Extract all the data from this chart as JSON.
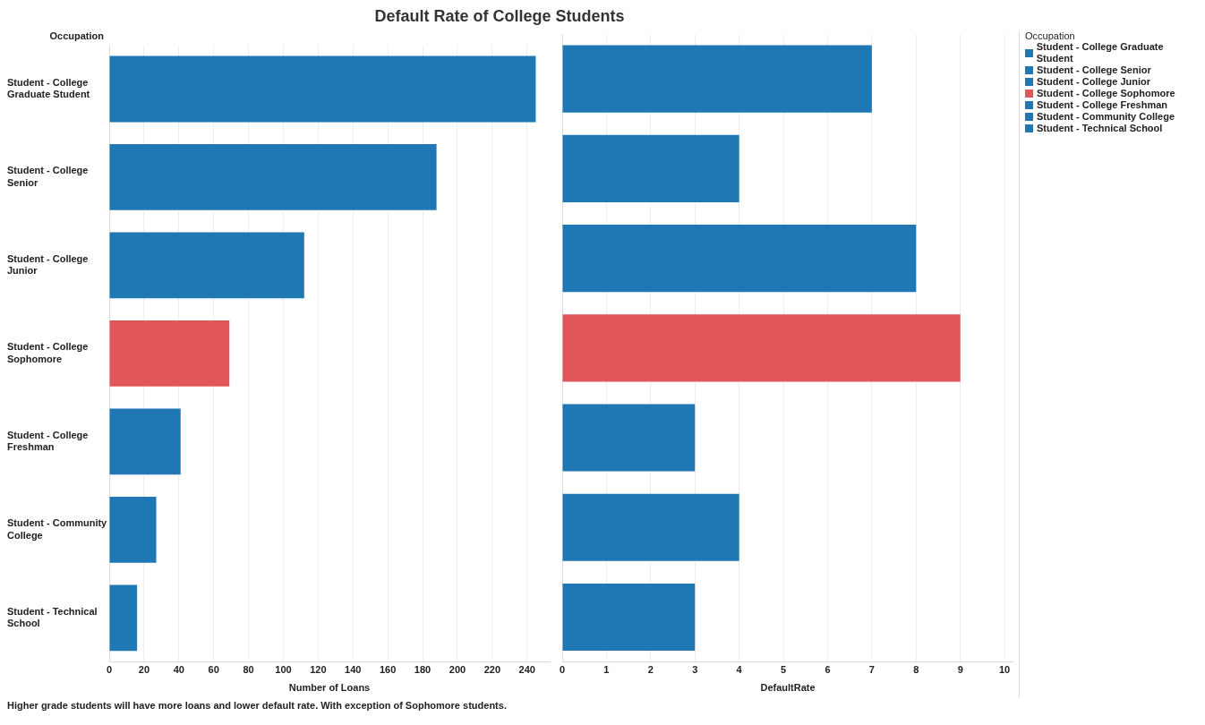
{
  "chart_data": [
    {
      "type": "bar",
      "orientation": "horizontal",
      "title": "Default Rate of College Students",
      "ylabel": "Occupation",
      "xlabel": "Number of Loans",
      "categories": [
        "Student - College Graduate Student",
        "Student - College Senior",
        "Student - College Junior",
        "Student - College Sophomore",
        "Student - College Freshman",
        "Student - Community College",
        "Student - Technical School"
      ],
      "values": [
        245,
        188,
        112,
        69,
        41,
        27,
        16
      ],
      "colors": [
        "#1f77b4",
        "#1f77b4",
        "#1f77b4",
        "#e15759",
        "#1f77b4",
        "#1f77b4",
        "#1f77b4"
      ],
      "xlim": [
        0,
        253
      ],
      "xticks": [
        0,
        20,
        40,
        60,
        80,
        100,
        120,
        140,
        160,
        180,
        200,
        220,
        240
      ],
      "grid": "x",
      "legend": false,
      "annotations": [
        "Higher grade students will have more loans and lower default rate. With exception of Sophomore students."
      ]
    },
    {
      "type": "bar",
      "orientation": "horizontal",
      "xlabel": "DefaultRate",
      "legend_title": "Occupation",
      "categories": [
        "Student - College Graduate Student",
        "Student - College Senior",
        "Student - College Junior",
        "Student - College Sophomore",
        "Student - College Freshman",
        "Student - Community College",
        "Student - Technical School"
      ],
      "values": [
        7,
        4,
        8,
        9,
        3,
        4,
        3
      ],
      "colors": [
        "#1f77b4",
        "#1f77b4",
        "#1f77b4",
        "#e15759",
        "#1f77b4",
        "#1f77b4",
        "#1f77b4"
      ],
      "xlim": [
        0,
        10.2
      ],
      "xticks": [
        0,
        1,
        2,
        3,
        4,
        5,
        6,
        7,
        8,
        9,
        10
      ],
      "grid": "x",
      "tick_labels": "x"
    }
  ]
}
